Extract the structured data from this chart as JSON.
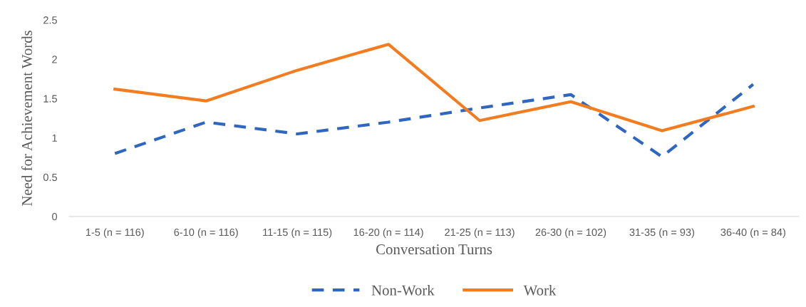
{
  "chart_data": {
    "type": "line",
    "xlabel": "Conversation Turns",
    "ylabel": "Need for Achievement Words",
    "categories": [
      "1-5 (n = 116)",
      "6-10 (n = 116)",
      "11-15 (n = 115)",
      "16-20 (n = 114)",
      "21-25 (n = 113)",
      "26-30 (n = 102)",
      "31-35 (n = 93)",
      "36-40 (n = 84)"
    ],
    "series": [
      {
        "name": "Non-Work",
        "color": "#2f66c2",
        "line_style": "dashed",
        "values": [
          0.8,
          1.2,
          1.05,
          1.2,
          1.38,
          1.55,
          0.76,
          1.68
        ]
      },
      {
        "name": "Work",
        "color": "#f47c20",
        "line_style": "solid",
        "values": [
          1.62,
          1.47,
          1.86,
          2.19,
          1.22,
          1.46,
          1.09,
          1.4
        ]
      }
    ],
    "ylim": [
      0,
      2.5
    ],
    "yticks": [
      0,
      0.5,
      1,
      1.5,
      2,
      2.5
    ],
    "grid": false,
    "legend": "bottom",
    "marker": "none"
  }
}
